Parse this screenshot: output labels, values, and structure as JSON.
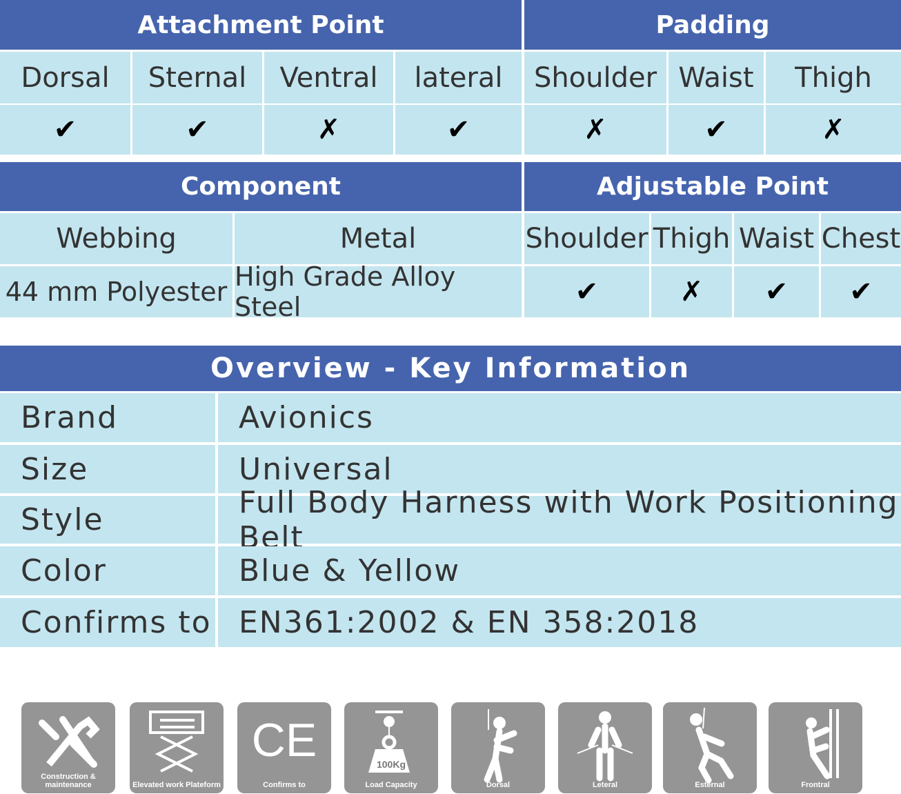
{
  "colors": {
    "header": "#4664ad",
    "cell": "#c3e5ef",
    "text": "#333333"
  },
  "attachment": {
    "title": "Attachment Point",
    "columns": [
      "Dorsal",
      "Sternal",
      "Ventral",
      "lateral"
    ],
    "values": [
      "✔",
      "✔",
      "✗",
      "✔"
    ]
  },
  "padding": {
    "title": "Padding",
    "columns": [
      "Shoulder",
      "Waist",
      "Thigh"
    ],
    "values": [
      "✗",
      "✔",
      "✗"
    ]
  },
  "component": {
    "title": "Component",
    "columns": [
      "Webbing",
      "Metal"
    ],
    "values": [
      "44 mm Polyester",
      "High Grade Alloy Steel"
    ]
  },
  "adjustable": {
    "title": "Adjustable Point",
    "columns": [
      "Shoulder",
      "Thigh",
      "Waist",
      "Chest"
    ],
    "values": [
      "✔",
      "✗",
      "✔",
      "✔"
    ]
  },
  "overview": {
    "title": "Overview - Key Information",
    "rows": [
      {
        "label": "Brand",
        "value": "Avionics"
      },
      {
        "label": "Size",
        "value": "Universal"
      },
      {
        "label": "Style",
        "value": "Full Body Harness with Work Positioning Belt"
      },
      {
        "label": "Color",
        "value": "Blue & Yellow"
      },
      {
        "label": "Confirms to",
        "value": "EN361:2002 & EN 358:2018"
      }
    ]
  },
  "icons": [
    {
      "name": "tools-icon",
      "caption": "Construction & maintenance"
    },
    {
      "name": "scissor-lift-icon",
      "caption": "Elevated work Plateform"
    },
    {
      "name": "ce-mark-icon",
      "caption": "Confirms to"
    },
    {
      "name": "weight-icon",
      "caption": "Load Capacity",
      "badge": "100Kg"
    },
    {
      "name": "dorsal-harness-icon",
      "caption": "Dorsal"
    },
    {
      "name": "lateral-harness-icon",
      "caption": "Leteral"
    },
    {
      "name": "sternal-harness-icon",
      "caption": "Esternal"
    },
    {
      "name": "frontal-harness-icon",
      "caption": "Frontral"
    }
  ]
}
